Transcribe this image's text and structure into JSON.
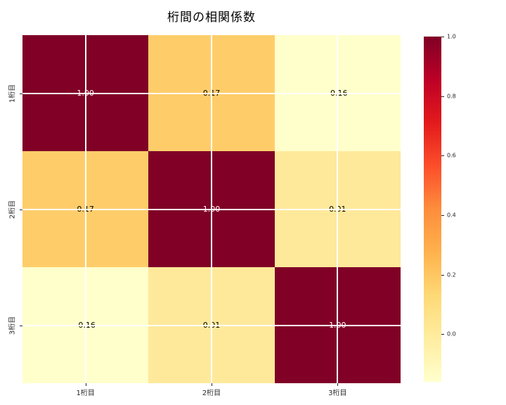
{
  "title": "桁間の相関係数",
  "colors": {
    "background": "#ffffff",
    "gridline": "#ffffff",
    "tick": "#262626",
    "heat_max": "#800026",
    "heat_min": "#ffffcc"
  },
  "chart_data": {
    "type": "heatmap",
    "title": "桁間の相関係数",
    "x_categories": [
      "1桁目",
      "2桁目",
      "3桁目"
    ],
    "y_categories": [
      "1桁目",
      "2桁目",
      "3桁目"
    ],
    "matrix": [
      [
        1.0,
        0.17,
        -0.16
      ],
      [
        0.17,
        1.0,
        0.01
      ],
      [
        -0.16,
        0.01,
        1.0
      ]
    ],
    "cell_labels": [
      [
        "1.00",
        "0.17",
        "-0.16"
      ],
      [
        "0.17",
        "1.00",
        "0.01"
      ],
      [
        "-0.16",
        "0.01",
        "1.00"
      ]
    ],
    "cell_colors": [
      [
        "#800026",
        "#fecd6a",
        "#ffffcc"
      ],
      [
        "#fecd6a",
        "#800026",
        "#fee99b"
      ],
      [
        "#ffffcc",
        "#fee99b",
        "#800026"
      ]
    ],
    "cell_text_colors": [
      [
        "#ffffff",
        "#000000",
        "#000000"
      ],
      [
        "#000000",
        "#ffffff",
        "#000000"
      ],
      [
        "#000000",
        "#000000",
        "#ffffff"
      ]
    ],
    "colormap": "YlOrRd",
    "vmin": -0.16,
    "vmax": 1.0,
    "grid": true,
    "colorbar": {
      "position": "right",
      "ticks": [
        1.0,
        0.8,
        0.6,
        0.4,
        0.2,
        0.0
      ],
      "tick_labels": [
        "1.0",
        "0.8",
        "0.6",
        "0.4",
        "0.2",
        "0.0"
      ],
      "gradient_stops": [
        "#ffffcc",
        "#ffeda0",
        "#fed976",
        "#feb24c",
        "#fd8d3c",
        "#fc4e2a",
        "#e31a1c",
        "#bd0026",
        "#800026"
      ]
    }
  }
}
